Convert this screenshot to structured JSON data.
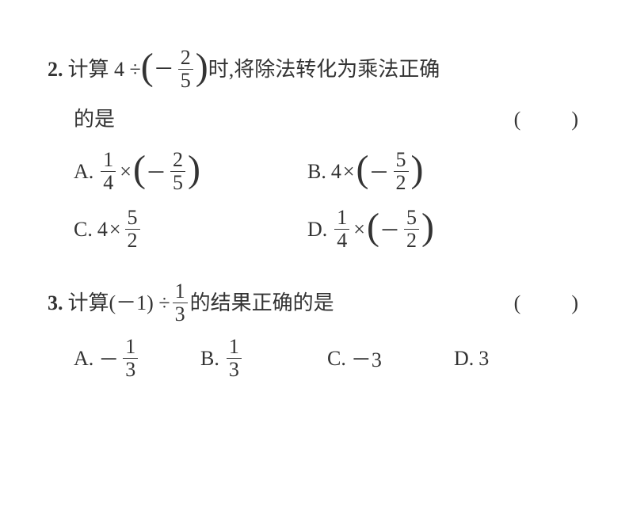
{
  "questions": [
    {
      "number": "2.",
      "stem_parts": {
        "s0": "计算 4 ÷ ",
        "s1": "－",
        "frac1": {
          "num": "2",
          "den": "5"
        },
        "s2": "时,将除法转化为乘法正确",
        "line2": "的是",
        "blank": "(　　)"
      },
      "options": [
        {
          "letter": "A.",
          "type": "frac_times_neg_frac",
          "f1": {
            "num": "1",
            "den": "4"
          },
          "f2": {
            "num": "2",
            "den": "5"
          }
        },
        {
          "letter": "B.",
          "type": "num_times_neg_frac",
          "n1": "4",
          "f2": {
            "num": "5",
            "den": "2"
          }
        },
        {
          "letter": "C.",
          "type": "num_times_frac",
          "n1": "4",
          "f2": {
            "num": "5",
            "den": "2"
          }
        },
        {
          "letter": "D.",
          "type": "frac_times_neg_frac",
          "f1": {
            "num": "1",
            "den": "4"
          },
          "f2": {
            "num": "5",
            "den": "2"
          }
        }
      ]
    },
    {
      "number": "3.",
      "stem_parts": {
        "s0": "计算(－1) ÷ ",
        "frac1": {
          "num": "1",
          "den": "3"
        },
        "s2": "的结果正确的是",
        "blank": "(　　)"
      },
      "options": [
        {
          "letter": "A.",
          "type": "neg_frac",
          "f1": {
            "num": "1",
            "den": "3"
          }
        },
        {
          "letter": "B.",
          "type": "frac",
          "f1": {
            "num": "1",
            "den": "3"
          }
        },
        {
          "letter": "C.",
          "type": "plain",
          "text": "－3"
        },
        {
          "letter": "D.",
          "type": "plain",
          "text": "3"
        }
      ]
    }
  ]
}
